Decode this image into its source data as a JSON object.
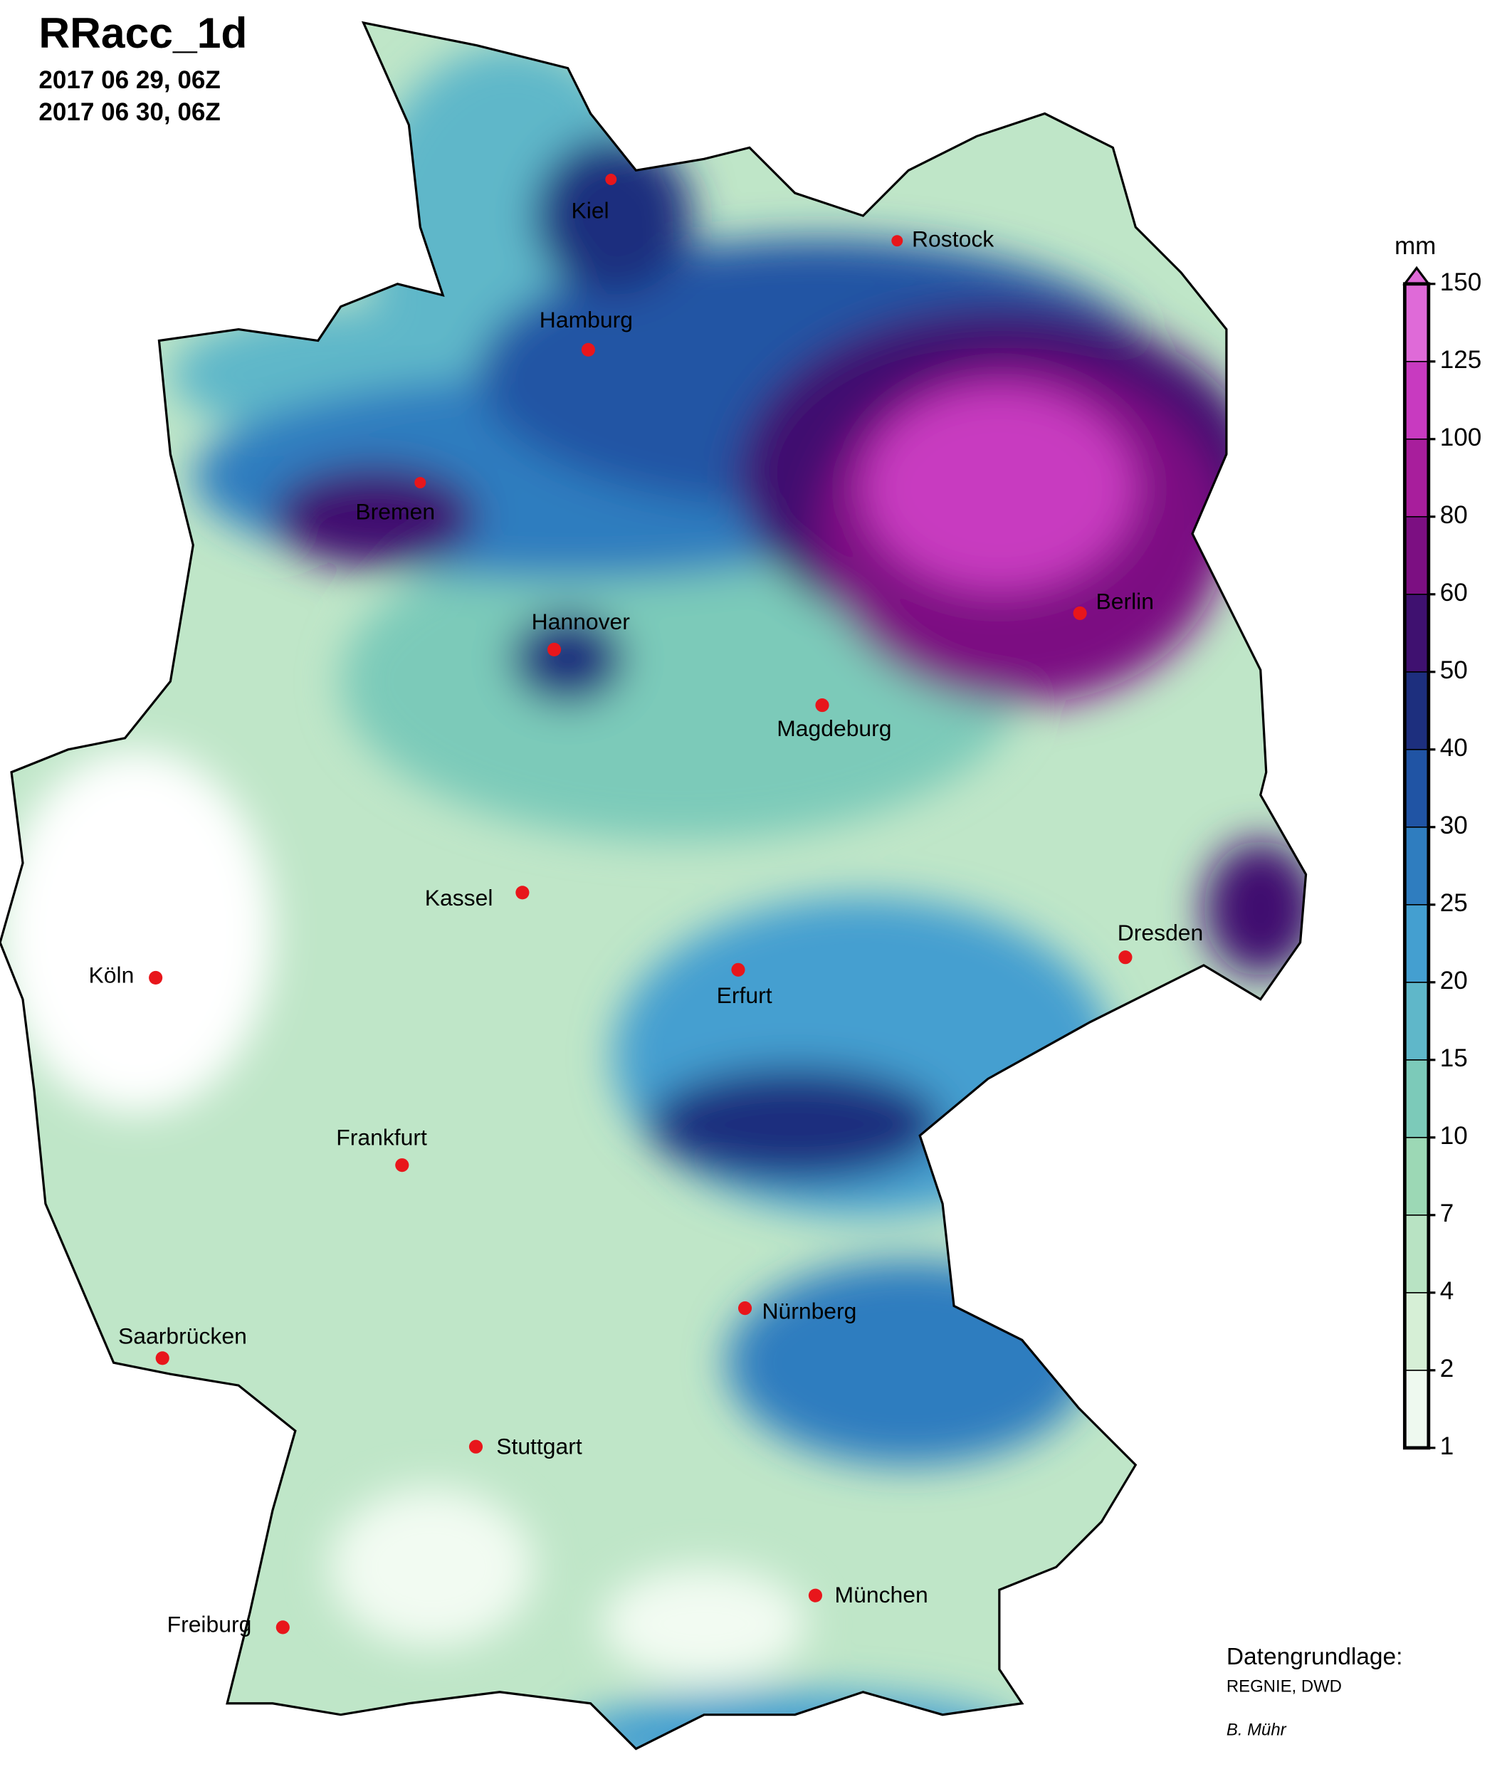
{
  "header": {
    "title": "RRacc_1d",
    "dates": [
      "2017 06 29, 06Z",
      "2017 06 30, 06Z"
    ]
  },
  "cities": [
    "Kiel",
    "Rostock",
    "Hamburg",
    "Bremen",
    "Hannover",
    "Berlin",
    "Magdeburg",
    "Kassel",
    "Dresden",
    "Köln",
    "Erfurt",
    "Frankfurt",
    "Nürnberg",
    "Saarbrücken",
    "Stuttgart",
    "München",
    "Freiburg"
  ],
  "legend": {
    "unit": "mm",
    "ticks": [
      1,
      2,
      4,
      7,
      10,
      15,
      20,
      25,
      30,
      40,
      50,
      60,
      80,
      100,
      125,
      150
    ],
    "colors": [
      "#eef9ef",
      "#d6efd6",
      "#b8e3c3",
      "#9cd8b5",
      "#7ccab9",
      "#5fb7c9",
      "#449fd0",
      "#2f7dbf",
      "#2054a4",
      "#1d2f7e",
      "#3f1170",
      "#7c0f82",
      "#a81e9c",
      "#c83ac0",
      "#df6ad8"
    ]
  },
  "credits": {
    "source_label": "Datengrundlage:",
    "source": "REGNIE, DWD",
    "author": "B. Mühr"
  }
}
